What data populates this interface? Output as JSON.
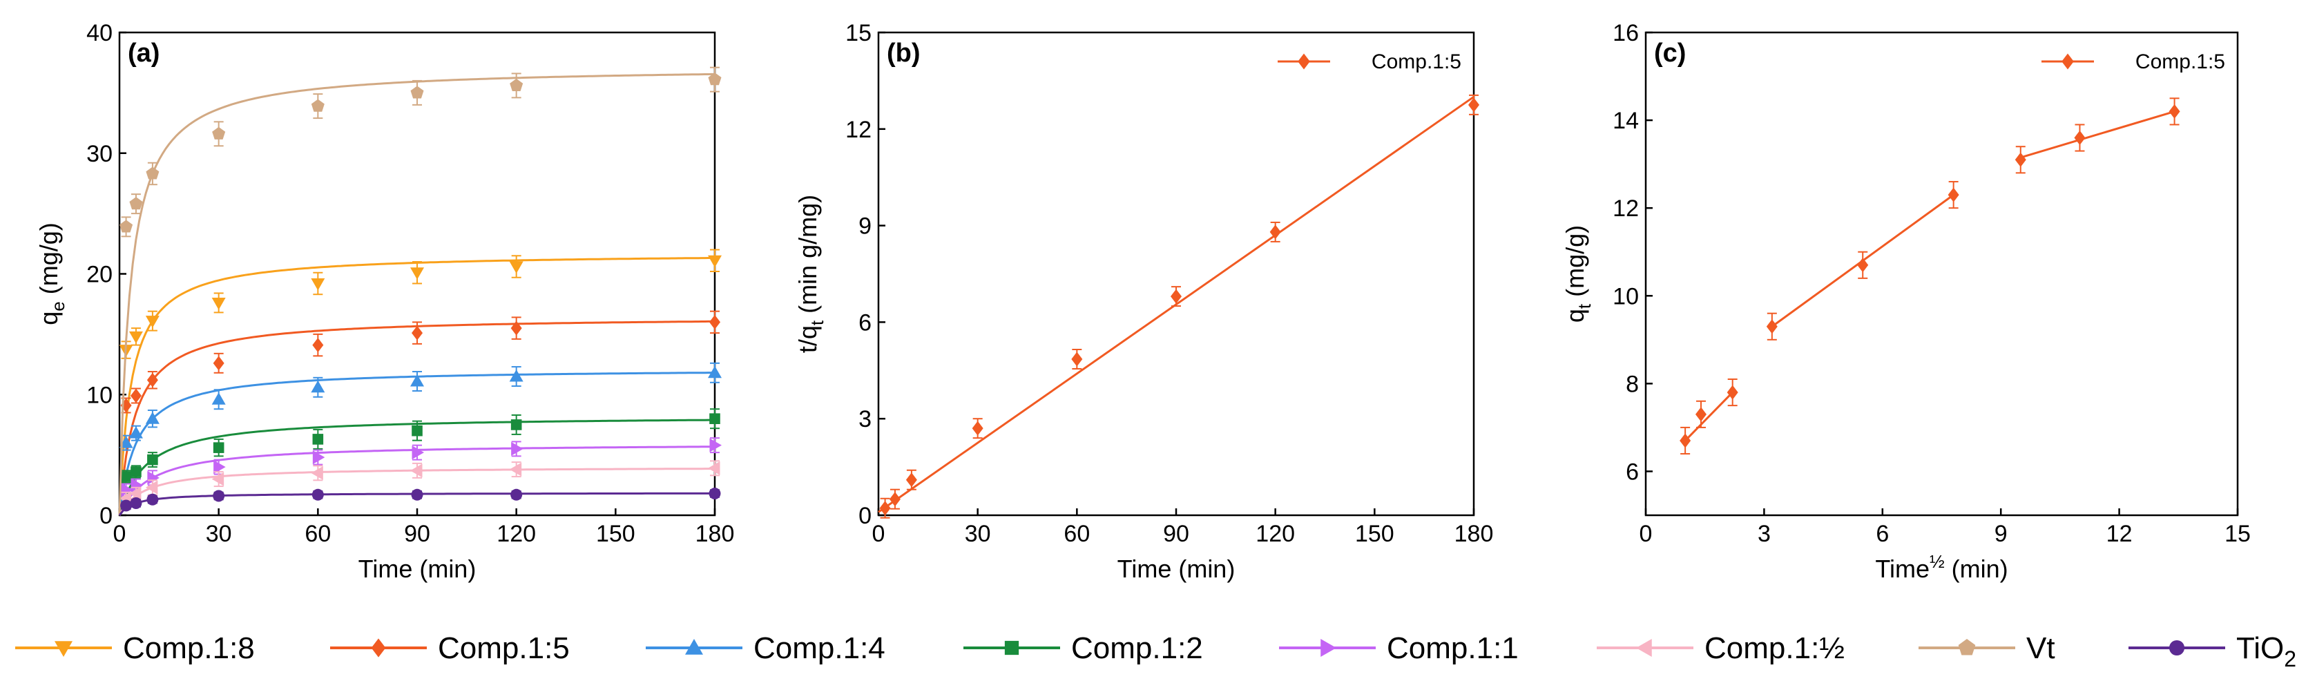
{
  "chart_data": [
    {
      "panel": "(a)",
      "type": "line",
      "title": "",
      "xlabel": "Time (min)",
      "ylabel_main": "q",
      "ylabel_sub": "e",
      "ylabel_unit": " (mg/g)",
      "xlim": [
        0,
        180
      ],
      "ylim": [
        0,
        40
      ],
      "xticks": [
        0,
        30,
        60,
        90,
        120,
        150,
        180
      ],
      "yticks": [
        0,
        10,
        20,
        30,
        40
      ],
      "x": [
        2,
        5,
        10,
        30,
        60,
        90,
        120,
        180
      ],
      "series": [
        {
          "name": "Comp.1:8",
          "color": "#f9a11b",
          "marker": "triangle-down",
          "values": [
            13.7,
            14.8,
            16.1,
            17.6,
            19.2,
            20.1,
            20.6,
            21.1
          ],
          "err": [
            0.7,
            0.7,
            0.8,
            0.8,
            0.9,
            0.9,
            0.9,
            0.9
          ]
        },
        {
          "name": "Comp.1:5",
          "color": "#f15a22",
          "marker": "diamond",
          "values": [
            9.1,
            9.9,
            11.2,
            12.6,
            14.1,
            15.1,
            15.5,
            16.0
          ],
          "err": [
            0.6,
            0.6,
            0.7,
            0.8,
            0.9,
            0.9,
            0.9,
            0.9
          ]
        },
        {
          "name": "Comp.1:4",
          "color": "#3d91e3",
          "marker": "triangle-up",
          "values": [
            6.0,
            6.8,
            8.0,
            9.6,
            10.6,
            11.1,
            11.5,
            11.8
          ],
          "err": [
            0.6,
            0.6,
            0.7,
            0.8,
            0.8,
            0.8,
            0.8,
            0.8
          ]
        },
        {
          "name": "Comp.1:2",
          "color": "#198c3c",
          "marker": "square",
          "values": [
            3.2,
            3.6,
            4.6,
            5.6,
            6.3,
            7.0,
            7.5,
            8.0
          ],
          "err": [
            0.5,
            0.5,
            0.6,
            0.7,
            0.8,
            0.8,
            0.8,
            0.8
          ]
        },
        {
          "name": "Comp.1:1",
          "color": "#c465f5",
          "marker": "triangle-right",
          "values": [
            2.1,
            2.5,
            3.1,
            4.0,
            4.8,
            5.2,
            5.5,
            5.8
          ],
          "err": [
            0.5,
            0.5,
            0.6,
            0.6,
            0.6,
            0.6,
            0.6,
            0.6
          ]
        },
        {
          "name": "Comp.1:½",
          "color": "#f8b4c4",
          "marker": "triangle-left",
          "values": [
            1.4,
            1.8,
            2.3,
            3.0,
            3.5,
            3.7,
            3.8,
            3.9
          ],
          "err": [
            0.5,
            0.5,
            0.6,
            0.6,
            0.6,
            0.6,
            0.6,
            0.6
          ]
        },
        {
          "name": "Vt",
          "color": "#d2a983",
          "marker": "pentagon",
          "values": [
            23.9,
            25.8,
            28.3,
            31.6,
            33.9,
            35.0,
            35.6,
            36.1
          ],
          "err": [
            0.8,
            0.8,
            0.9,
            1.0,
            1.0,
            1.0,
            1.0,
            1.0
          ]
        },
        {
          "name": "TiO",
          "sub": "2",
          "color": "#5b2a92",
          "marker": "circle",
          "values": [
            0.8,
            1.0,
            1.3,
            1.6,
            1.7,
            1.7,
            1.7,
            1.8
          ],
          "err": [
            0.3,
            0.3,
            0.3,
            0.3,
            0.3,
            0.3,
            0.3,
            0.3
          ]
        }
      ]
    },
    {
      "panel": "(b)",
      "type": "scatter",
      "title": "",
      "xlabel": "Time (min)",
      "ylabel_main": "t/q",
      "ylabel_sub": "t",
      "ylabel_unit": " (min g/mg)",
      "xlim": [
        0,
        180
      ],
      "ylim": [
        0,
        15
      ],
      "xticks": [
        0,
        30,
        60,
        90,
        120,
        150,
        180
      ],
      "yticks": [
        0,
        3,
        6,
        9,
        12,
        15
      ],
      "legend": "top-right",
      "series": [
        {
          "name": "Comp.1:5",
          "color": "#f15a22",
          "marker": "diamond",
          "x": [
            2,
            5,
            10,
            30,
            60,
            90,
            120,
            180
          ],
          "values": [
            0.22,
            0.5,
            1.1,
            2.7,
            4.85,
            6.8,
            8.8,
            12.75
          ],
          "err": [
            0.3,
            0.3,
            0.3,
            0.3,
            0.3,
            0.3,
            0.3,
            0.3
          ],
          "fit": {
            "x": [
              0,
              180
            ],
            "y": [
              0.1,
              13.0
            ]
          }
        }
      ]
    },
    {
      "panel": "(c)",
      "type": "scatter",
      "title": "",
      "xlabel_main": "Time",
      "xlabel_sup": "½",
      "xlabel_unit": " (min)",
      "ylabel_main": "q",
      "ylabel_sub": "t",
      "ylabel_unit": " (mg/g)",
      "xlim": [
        0,
        15
      ],
      "ylim": [
        5,
        16
      ],
      "xticks": [
        0,
        3,
        6,
        9,
        12,
        15
      ],
      "yticks": [
        6,
        8,
        10,
        12,
        14,
        16
      ],
      "legend": "top-right",
      "series": [
        {
          "name": "Comp.1:5",
          "color": "#f15a22",
          "marker": "diamond",
          "x": [
            1.0,
            1.4,
            2.2,
            3.2,
            5.5,
            7.8,
            9.5,
            11.0,
            13.4
          ],
          "values": [
            6.7,
            7.3,
            7.8,
            9.3,
            10.7,
            12.3,
            13.1,
            13.6,
            14.2
          ],
          "err": [
            0.3,
            0.3,
            0.3,
            0.3,
            0.3,
            0.3,
            0.3,
            0.3,
            0.3
          ],
          "fit_segments": [
            {
              "x": [
                1.0,
                2.2
              ],
              "y": [
                6.7,
                7.8
              ]
            },
            {
              "x": [
                3.2,
                7.8
              ],
              "y": [
                9.3,
                12.3
              ]
            },
            {
              "x": [
                9.5,
                13.4
              ],
              "y": [
                13.15,
                14.2
              ]
            }
          ]
        }
      ]
    }
  ]
}
